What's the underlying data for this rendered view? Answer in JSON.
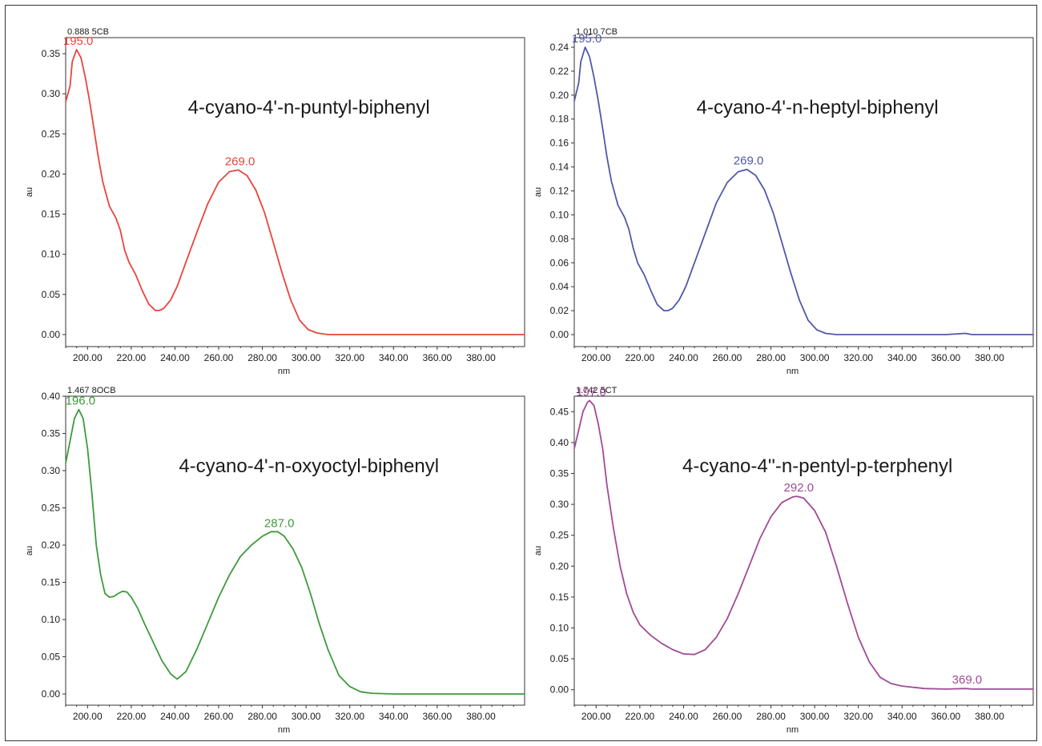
{
  "chart_data": [
    {
      "type": "line",
      "header": "0.888 5CB",
      "title": "4-cyano-4'-n-puntyl-biphenyl",
      "xlabel": "nm",
      "ylabel": "au",
      "xlim": [
        190,
        400
      ],
      "ylim": [
        -0.015,
        0.37
      ],
      "x_ticks": [
        200,
        220,
        240,
        260,
        280,
        300,
        320,
        340,
        360,
        380
      ],
      "x_tick_labels": [
        "200.00",
        "220.00",
        "240.00",
        "260.00",
        "280.00",
        "300.00",
        "320.00",
        "340.00",
        "360.00",
        "380.00"
      ],
      "y_ticks": [
        0,
        0.05,
        0.1,
        0.15,
        0.2,
        0.25,
        0.3,
        0.35
      ],
      "y_tick_labels": [
        "0.00",
        "0.05",
        "0.10",
        "0.15",
        "0.20",
        "0.25",
        "0.30",
        "0.35"
      ],
      "color": "#e8453c",
      "grid": false,
      "series": [
        {
          "x": [
            190,
            192,
            193,
            195,
            197,
            199,
            201,
            203,
            205,
            207,
            210,
            213,
            215,
            217,
            219,
            222,
            225,
            228,
            231,
            233,
            235,
            238,
            241,
            245,
            250,
            255,
            260,
            265,
            269,
            273,
            277,
            281,
            285,
            289,
            293,
            297,
            301,
            305,
            310,
            315,
            320,
            340,
            360,
            380,
            400
          ],
          "y": [
            0.29,
            0.31,
            0.34,
            0.355,
            0.345,
            0.32,
            0.29,
            0.255,
            0.22,
            0.19,
            0.16,
            0.145,
            0.13,
            0.105,
            0.09,
            0.075,
            0.055,
            0.038,
            0.03,
            0.03,
            0.033,
            0.043,
            0.06,
            0.09,
            0.127,
            0.163,
            0.19,
            0.203,
            0.205,
            0.198,
            0.18,
            0.152,
            0.115,
            0.077,
            0.043,
            0.018,
            0.006,
            0.002,
            0,
            0,
            0,
            0,
            0,
            0,
            0
          ]
        }
      ],
      "annotations": [
        {
          "x": 195,
          "y": 0.355,
          "text": "195.0"
        },
        {
          "x": 269,
          "y": 0.205,
          "text": "269.0"
        }
      ]
    },
    {
      "type": "line",
      "header": "1.010 7CB",
      "title": "4-cyano-4'-n-heptyl-biphenyl",
      "xlabel": "nm",
      "ylabel": "au",
      "xlim": [
        190,
        400
      ],
      "ylim": [
        -0.01,
        0.248
      ],
      "x_ticks": [
        200,
        220,
        240,
        260,
        280,
        300,
        320,
        340,
        360,
        380
      ],
      "x_tick_labels": [
        "200.00",
        "220.00",
        "240.00",
        "260.00",
        "280.00",
        "300.00",
        "320.00",
        "340.00",
        "360.00",
        "380.00"
      ],
      "y_ticks": [
        0,
        0.02,
        0.04,
        0.06,
        0.08,
        0.1,
        0.12,
        0.14,
        0.16,
        0.18,
        0.2,
        0.22,
        0.24
      ],
      "y_tick_labels": [
        "0.00",
        "0.02",
        "0.04",
        "0.06",
        "0.08",
        "0.10",
        "0.12",
        "0.14",
        "0.16",
        "0.18",
        "0.20",
        "0.22",
        "0.24"
      ],
      "color": "#5059a8",
      "grid": false,
      "series": [
        {
          "x": [
            190,
            192,
            193,
            195,
            197,
            199,
            201,
            203,
            205,
            207,
            210,
            213,
            215,
            217,
            219,
            222,
            225,
            228,
            231,
            233,
            235,
            238,
            241,
            245,
            250,
            255,
            260,
            265,
            269,
            273,
            277,
            281,
            285,
            289,
            293,
            297,
            301,
            305,
            310,
            315,
            320,
            340,
            360,
            369,
            372,
            380,
            400
          ],
          "y": [
            0.195,
            0.21,
            0.228,
            0.24,
            0.232,
            0.215,
            0.195,
            0.172,
            0.148,
            0.128,
            0.108,
            0.098,
            0.088,
            0.072,
            0.06,
            0.05,
            0.037,
            0.025,
            0.02,
            0.02,
            0.022,
            0.029,
            0.04,
            0.06,
            0.085,
            0.11,
            0.127,
            0.136,
            0.138,
            0.133,
            0.121,
            0.102,
            0.077,
            0.052,
            0.029,
            0.012,
            0.004,
            0.001,
            0,
            0,
            0,
            0,
            0,
            0.001,
            0,
            0,
            0
          ]
        }
      ],
      "annotations": [
        {
          "x": 195,
          "y": 0.24,
          "text": "195.0"
        },
        {
          "x": 269,
          "y": 0.138,
          "text": "269.0"
        }
      ]
    },
    {
      "type": "line",
      "header": "1.467 8OCB",
      "title": "4-cyano-4'-n-oxyoctyl-biphenyl",
      "xlabel": "nm",
      "ylabel": "au",
      "xlim": [
        190,
        400
      ],
      "ylim": [
        -0.015,
        0.4
      ],
      "x_ticks": [
        200,
        220,
        240,
        260,
        280,
        300,
        320,
        340,
        360,
        380
      ],
      "x_tick_labels": [
        "200.00",
        "220.00",
        "240.00",
        "260.00",
        "280.00",
        "300.00",
        "320.00",
        "340.00",
        "360.00",
        "380.00"
      ],
      "y_ticks": [
        0,
        0.05,
        0.1,
        0.15,
        0.2,
        0.25,
        0.3,
        0.35,
        0.4
      ],
      "y_tick_labels": [
        "0.00",
        "0.05",
        "0.10",
        "0.15",
        "0.20",
        "0.25",
        "0.30",
        "0.35",
        "0.40"
      ],
      "color": "#3f9a3c",
      "grid": false,
      "series": [
        {
          "x": [
            190,
            192,
            194,
            196,
            198,
            200,
            202,
            204,
            206,
            208,
            210,
            212,
            214,
            216,
            218,
            220,
            223,
            226,
            230,
            234,
            238,
            241,
            245,
            250,
            255,
            260,
            265,
            270,
            275,
            280,
            284,
            287,
            290,
            294,
            298,
            302,
            306,
            310,
            315,
            320,
            325,
            330,
            340,
            360,
            380,
            400
          ],
          "y": [
            0.31,
            0.34,
            0.37,
            0.382,
            0.37,
            0.33,
            0.27,
            0.2,
            0.16,
            0.135,
            0.13,
            0.131,
            0.135,
            0.138,
            0.137,
            0.13,
            0.115,
            0.095,
            0.07,
            0.045,
            0.027,
            0.02,
            0.03,
            0.06,
            0.095,
            0.13,
            0.16,
            0.185,
            0.2,
            0.212,
            0.218,
            0.218,
            0.212,
            0.195,
            0.17,
            0.135,
            0.095,
            0.06,
            0.025,
            0.01,
            0.003,
            0.001,
            0,
            0,
            0,
            0
          ]
        }
      ],
      "annotations": [
        {
          "x": 196,
          "y": 0.382,
          "text": "196.0"
        },
        {
          "x": 287,
          "y": 0.218,
          "text": "287.0"
        }
      ]
    },
    {
      "type": "line",
      "header": "1.742 5CT",
      "title": "4-cyano-4''-n-pentyl-p-terphenyl",
      "xlabel": "nm",
      "ylabel": "au",
      "xlim": [
        190,
        400
      ],
      "ylim": [
        -0.025,
        0.475
      ],
      "x_ticks": [
        200,
        220,
        240,
        260,
        280,
        300,
        320,
        340,
        360,
        380
      ],
      "x_tick_labels": [
        "200.00",
        "220.00",
        "240.00",
        "260.00",
        "280.00",
        "300.00",
        "320.00",
        "340.00",
        "360.00",
        "380.00"
      ],
      "y_ticks": [
        0,
        0.05,
        0.1,
        0.15,
        0.2,
        0.25,
        0.3,
        0.35,
        0.4,
        0.45
      ],
      "y_tick_labels": [
        "0.00",
        "0.05",
        "0.10",
        "0.15",
        "0.20",
        "0.25",
        "0.30",
        "0.35",
        "0.40",
        "0.45"
      ],
      "color": "#a24a96",
      "grid": false,
      "series": [
        {
          "x": [
            190,
            192,
            194,
            196,
            197,
            199,
            201,
            203,
            205,
            208,
            211,
            214,
            217,
            220,
            225,
            230,
            235,
            240,
            245,
            250,
            255,
            260,
            265,
            270,
            275,
            280,
            285,
            290,
            292,
            295,
            300,
            305,
            310,
            315,
            320,
            325,
            330,
            335,
            340,
            345,
            350,
            360,
            369,
            372,
            380,
            400
          ],
          "y": [
            0.39,
            0.42,
            0.45,
            0.465,
            0.468,
            0.46,
            0.43,
            0.39,
            0.33,
            0.26,
            0.2,
            0.155,
            0.125,
            0.105,
            0.088,
            0.075,
            0.065,
            0.058,
            0.057,
            0.065,
            0.085,
            0.115,
            0.155,
            0.2,
            0.245,
            0.28,
            0.303,
            0.312,
            0.313,
            0.31,
            0.29,
            0.255,
            0.2,
            0.14,
            0.085,
            0.045,
            0.02,
            0.01,
            0.006,
            0.004,
            0.002,
            0.001,
            0.002,
            0.001,
            0.001,
            0.001
          ]
        }
      ],
      "annotations": [
        {
          "x": 197,
          "y": 0.468,
          "text": "197.0"
        },
        {
          "x": 292,
          "y": 0.313,
          "text": "292.0"
        },
        {
          "x": 369,
          "y": 0.002,
          "text": "369.0"
        }
      ]
    }
  ]
}
